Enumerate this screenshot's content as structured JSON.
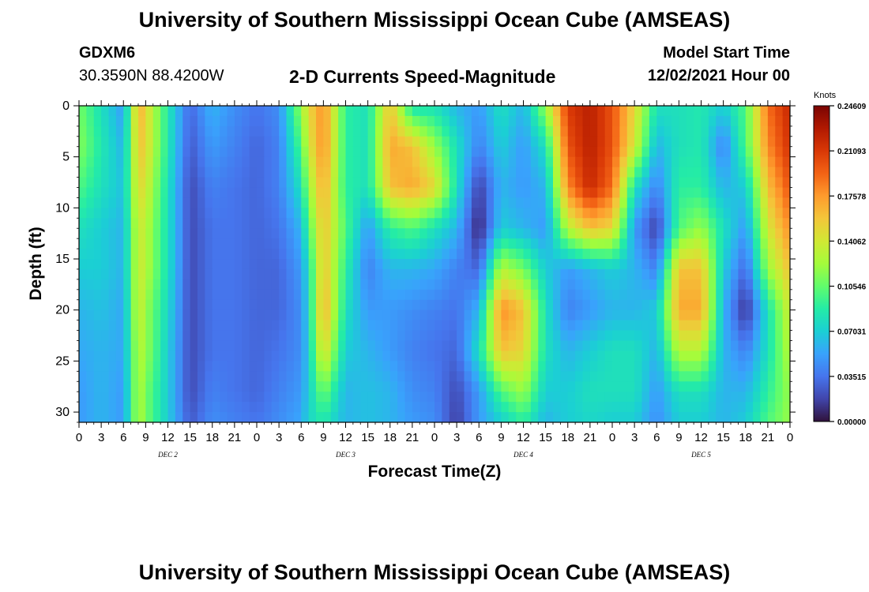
{
  "header": {
    "title": "University of Southern Mississippi Ocean Cube (AMSEAS)",
    "station": "GDXM6",
    "coords": "30.3590N  88.4200W",
    "subtitle": "2-D Currents Speed-Magnitude",
    "model_start_label": "Model Start Time",
    "model_start_value": "12/02/2021 Hour 00"
  },
  "footer": {
    "title": "University of Southern Mississippi Ocean Cube (AMSEAS)"
  },
  "chart_data": {
    "type": "heatmap",
    "title": "2-D Currents Speed-Magnitude",
    "xlabel": "Forecast Time(Z)",
    "ylabel": "Depth (ft)",
    "x_hours_range": [
      0,
      96
    ],
    "x_tick_labels": [
      "0",
      "3",
      "6",
      "9",
      "12",
      "15",
      "18",
      "21",
      "0",
      "3",
      "6",
      "9",
      "12",
      "15",
      "18",
      "21",
      "0",
      "3",
      "6",
      "9",
      "12",
      "15",
      "18",
      "21",
      "0",
      "3",
      "6",
      "9",
      "12",
      "15",
      "18",
      "21",
      "0"
    ],
    "day_labels": [
      {
        "label": "DEC 2",
        "hour": 12
      },
      {
        "label": "DEC 3",
        "hour": 36
      },
      {
        "label": "DEC 4",
        "hour": 60
      },
      {
        "label": "DEC 5",
        "hour": 84
      }
    ],
    "y_range": [
      0,
      31
    ],
    "y_inverted": true,
    "y_ticks": [
      0,
      5,
      10,
      15,
      20,
      25,
      30
    ],
    "colorbar": {
      "label": "Knots",
      "range": [
        0.0,
        0.24609
      ],
      "ticks": [
        "0.24609",
        "0.21093",
        "0.17578",
        "0.14062",
        "0.10546",
        "0.07031",
        "0.03515",
        "0.00000"
      ]
    },
    "colormap": [
      "#30123b",
      "#4145ab",
      "#4675ed",
      "#39a2fc",
      "#1bcfd4",
      "#24eca6",
      "#61fc6c",
      "#a4fc3b",
      "#d1e834",
      "#f3c63a",
      "#fe9b2d",
      "#f36315",
      "#d93806",
      "#b11901",
      "#7a0402"
    ],
    "time_hours": [
      0,
      3,
      6,
      8,
      9,
      12,
      15,
      18,
      21,
      24,
      27,
      30,
      31,
      33,
      36,
      39,
      42,
      45,
      48,
      51,
      54,
      57,
      60,
      63,
      66,
      69,
      72,
      75,
      78,
      81,
      84,
      87,
      90,
      93,
      96
    ],
    "depths_ft": [
      0,
      4,
      8,
      12,
      16,
      20,
      24,
      28,
      31
    ],
    "speed_knots": [
      [
        0.11,
        0.115,
        0.1,
        0.08,
        0.07,
        0.06,
        0.055,
        0.05,
        0.05
      ],
      [
        0.08,
        0.085,
        0.08,
        0.07,
        0.07,
        0.065,
        0.06,
        0.06,
        0.06
      ],
      [
        0.05,
        0.06,
        0.065,
        0.06,
        0.06,
        0.055,
        0.055,
        0.05,
        0.05
      ],
      [
        0.17,
        0.16,
        0.15,
        0.14,
        0.14,
        0.14,
        0.13,
        0.13,
        0.13
      ],
      [
        0.15,
        0.15,
        0.14,
        0.13,
        0.13,
        0.12,
        0.12,
        0.11,
        0.11
      ],
      [
        0.085,
        0.085,
        0.08,
        0.08,
        0.08,
        0.075,
        0.07,
        0.07,
        0.07
      ],
      [
        0.03,
        0.025,
        0.02,
        0.02,
        0.02,
        0.02,
        0.02,
        0.02,
        0.025
      ],
      [
        0.06,
        0.05,
        0.04,
        0.035,
        0.035,
        0.035,
        0.035,
        0.04,
        0.045
      ],
      [
        0.045,
        0.04,
        0.035,
        0.035,
        0.035,
        0.035,
        0.035,
        0.035,
        0.04
      ],
      [
        0.035,
        0.03,
        0.03,
        0.03,
        0.03,
        0.03,
        0.03,
        0.03,
        0.035
      ],
      [
        0.045,
        0.04,
        0.04,
        0.035,
        0.03,
        0.03,
        0.035,
        0.04,
        0.045
      ],
      [
        0.12,
        0.1,
        0.08,
        0.06,
        0.05,
        0.045,
        0.045,
        0.05,
        0.055
      ],
      [
        0.15,
        0.14,
        0.12,
        0.1,
        0.08,
        0.075,
        0.07,
        0.07,
        0.075
      ],
      [
        0.18,
        0.18,
        0.17,
        0.16,
        0.16,
        0.17,
        0.15,
        0.11,
        0.085
      ],
      [
        0.09,
        0.09,
        0.09,
        0.1,
        0.09,
        0.08,
        0.07,
        0.06,
        0.06
      ],
      [
        0.08,
        0.08,
        0.08,
        0.05,
        0.04,
        0.05,
        0.06,
        0.065,
        0.065
      ],
      [
        0.16,
        0.17,
        0.16,
        0.09,
        0.06,
        0.05,
        0.05,
        0.06,
        0.06
      ],
      [
        0.08,
        0.16,
        0.17,
        0.1,
        0.06,
        0.045,
        0.04,
        0.045,
        0.05
      ],
      [
        0.08,
        0.12,
        0.15,
        0.08,
        0.055,
        0.04,
        0.035,
        0.04,
        0.045
      ],
      [
        0.06,
        0.08,
        0.08,
        0.06,
        0.04,
        0.035,
        0.03,
        0.02,
        0.015
      ],
      [
        0.05,
        0.04,
        0.015,
        0.005,
        0.03,
        0.06,
        0.08,
        0.05,
        0.05
      ],
      [
        0.08,
        0.07,
        0.06,
        0.07,
        0.13,
        0.18,
        0.16,
        0.1,
        0.07
      ],
      [
        0.06,
        0.05,
        0.05,
        0.06,
        0.11,
        0.16,
        0.15,
        0.12,
        0.09
      ],
      [
        0.12,
        0.08,
        0.06,
        0.05,
        0.07,
        0.08,
        0.08,
        0.07,
        0.06
      ],
      [
        0.21,
        0.2,
        0.18,
        0.13,
        0.05,
        0.04,
        0.06,
        0.07,
        0.07
      ],
      [
        0.225,
        0.225,
        0.22,
        0.16,
        0.06,
        0.05,
        0.07,
        0.08,
        0.075
      ],
      [
        0.2,
        0.2,
        0.19,
        0.15,
        0.07,
        0.06,
        0.08,
        0.08,
        0.07
      ],
      [
        0.15,
        0.14,
        0.08,
        0.05,
        0.06,
        0.06,
        0.08,
        0.08,
        0.07
      ],
      [
        0.08,
        0.06,
        0.04,
        0.015,
        0.04,
        0.07,
        0.06,
        0.05,
        0.045
      ],
      [
        0.08,
        0.08,
        0.09,
        0.1,
        0.16,
        0.17,
        0.13,
        0.08,
        0.07
      ],
      [
        0.085,
        0.085,
        0.09,
        0.12,
        0.16,
        0.17,
        0.13,
        0.08,
        0.07
      ],
      [
        0.07,
        0.04,
        0.06,
        0.08,
        0.07,
        0.06,
        0.06,
        0.06,
        0.06
      ],
      [
        0.1,
        0.1,
        0.07,
        0.05,
        0.03,
        0.01,
        0.04,
        0.06,
        0.07
      ],
      [
        0.19,
        0.18,
        0.16,
        0.14,
        0.12,
        0.08,
        0.08,
        0.09,
        0.1
      ],
      [
        0.22,
        0.215,
        0.2,
        0.18,
        0.16,
        0.14,
        0.13,
        0.12,
        0.12
      ]
    ]
  }
}
